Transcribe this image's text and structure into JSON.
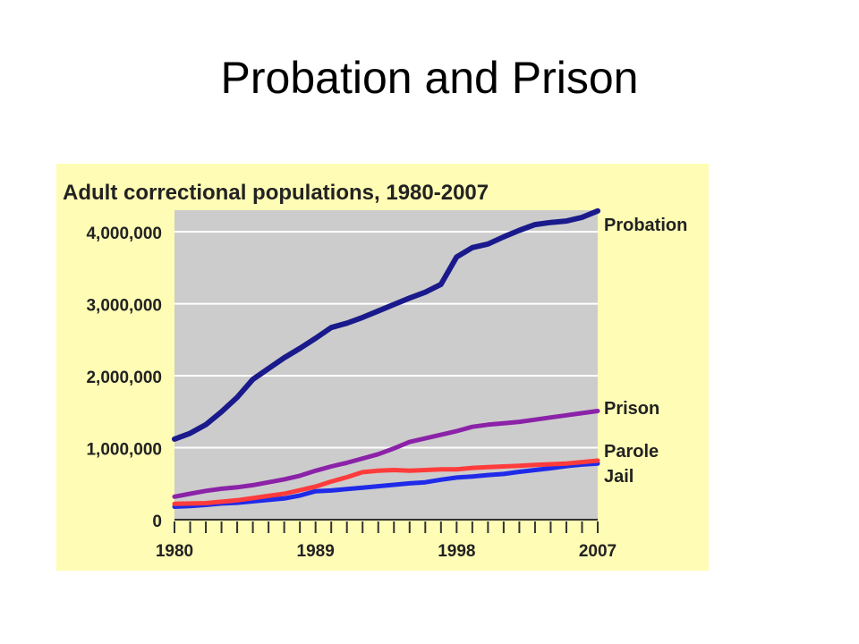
{
  "slide": {
    "title": "Probation and Prison"
  },
  "colors": {
    "panel_bg": "#FFFDB5",
    "plot_bg": "#CCCCCC",
    "probation": "#1A1A8C",
    "prison": "#8B22A8",
    "parole": "#FF3B3B",
    "jail": "#1F2BE8"
  },
  "chart_data": {
    "type": "line",
    "title": "Adult correctional populations, 1980-2007",
    "xlabel": "",
    "ylabel": "",
    "x": [
      1980,
      1981,
      1982,
      1983,
      1984,
      1985,
      1986,
      1987,
      1988,
      1989,
      1990,
      1991,
      1992,
      1993,
      1994,
      1995,
      1996,
      1997,
      1998,
      1999,
      2000,
      2001,
      2002,
      2003,
      2004,
      2005,
      2006,
      2007
    ],
    "xlim": [
      1980,
      2007
    ],
    "ylim": [
      0,
      4300000
    ],
    "x_tick_labels": [
      "1980",
      "1989",
      "1998",
      "2007"
    ],
    "y_tick_labels": [
      "0",
      "1,000,000",
      "2,000,000",
      "3,000,000",
      "4,000,000"
    ],
    "y_tick_values": [
      0,
      1000000,
      2000000,
      3000000,
      4000000
    ],
    "grid": true,
    "legend": "right-end labels",
    "series": [
      {
        "name": "Probation",
        "values": [
          1120000,
          1200000,
          1320000,
          1500000,
          1700000,
          1950000,
          2100000,
          2250000,
          2380000,
          2520000,
          2670000,
          2730000,
          2810000,
          2900000,
          2990000,
          3080000,
          3160000,
          3270000,
          3650000,
          3780000,
          3830000,
          3930000,
          4020000,
          4100000,
          4130000,
          4150000,
          4200000,
          4290000
        ]
      },
      {
        "name": "Prison",
        "values": [
          320000,
          360000,
          400000,
          430000,
          450000,
          480000,
          520000,
          560000,
          610000,
          680000,
          740000,
          790000,
          850000,
          910000,
          990000,
          1080000,
          1130000,
          1180000,
          1230000,
          1290000,
          1320000,
          1340000,
          1360000,
          1390000,
          1420000,
          1450000,
          1480000,
          1510000
        ]
      },
      {
        "name": "Parole",
        "values": [
          220000,
          225000,
          230000,
          250000,
          270000,
          300000,
          330000,
          360000,
          410000,
          460000,
          530000,
          590000,
          660000,
          680000,
          690000,
          680000,
          690000,
          700000,
          700000,
          720000,
          730000,
          740000,
          750000,
          760000,
          770000,
          780000,
          800000,
          820000
        ]
      },
      {
        "name": "Jail",
        "values": [
          180000,
          190000,
          205000,
          225000,
          235000,
          255000,
          275000,
          295000,
          335000,
          395000,
          405000,
          425000,
          445000,
          465000,
          485000,
          505000,
          520000,
          555000,
          585000,
          600000,
          620000,
          635000,
          665000,
          690000,
          715000,
          745000,
          765000,
          780000
        ]
      }
    ]
  }
}
